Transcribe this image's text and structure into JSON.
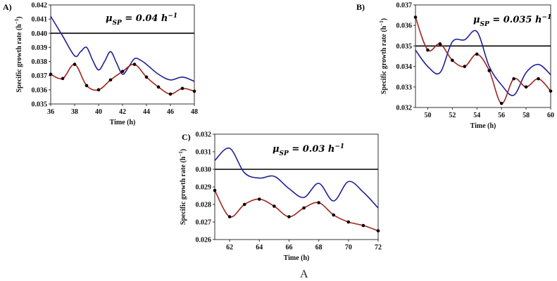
{
  "figure_caption": "A",
  "colors": {
    "model_line": "#1f1f9a",
    "measured_line": "#a3241c",
    "markers": "#000000",
    "setpoint_line": "#000000"
  },
  "chart_data": [
    {
      "panel": "A)",
      "type": "line",
      "annotation": "μSP = 0.04 h⁻¹",
      "xlabel": "Time (h)",
      "ylabel": "Specific growth rate (h⁻¹)",
      "xlim": [
        36,
        48
      ],
      "ylim": [
        0.035,
        0.042
      ],
      "xticks": [
        "36",
        "38",
        "40",
        "42",
        "44",
        "46",
        "48"
      ],
      "yticks": [
        "0.035",
        "0.036",
        "0.037",
        "0.038",
        "0.039",
        "0.040",
        "0.041",
        "0.042"
      ],
      "setpoint": 0.04,
      "series": [
        {
          "role": "model",
          "color": "#1f1f9a",
          "markers": false,
          "x": [
            36,
            37,
            38,
            38.5,
            39,
            39.5,
            40,
            40.5,
            41,
            41.5,
            42,
            42.5,
            43,
            43.5,
            44,
            45,
            46,
            47,
            48
          ],
          "y": [
            0.0412,
            0.0398,
            0.0384,
            0.0387,
            0.039,
            0.0381,
            0.0374,
            0.038,
            0.0387,
            0.0379,
            0.0371,
            0.0376,
            0.0382,
            0.0381,
            0.0378,
            0.0371,
            0.0367,
            0.0369,
            0.0366
          ]
        },
        {
          "role": "measured",
          "color": "#a3241c",
          "markers": true,
          "x": [
            36,
            37,
            38,
            39,
            40,
            41,
            42,
            43,
            44,
            45,
            46,
            47,
            48
          ],
          "y": [
            0.0371,
            0.0368,
            0.0378,
            0.0363,
            0.036,
            0.0367,
            0.0373,
            0.0378,
            0.0369,
            0.0362,
            0.0357,
            0.0361,
            0.0359
          ]
        }
      ]
    },
    {
      "panel": "B)",
      "type": "line",
      "annotation": "μSP = 0.035 h⁻¹",
      "xlabel": "Time (h)",
      "ylabel": "Specific growth rate (h⁻¹)",
      "xlim": [
        49,
        60
      ],
      "ylim": [
        0.032,
        0.037
      ],
      "xticks": [
        "50",
        "52",
        "54",
        "56",
        "58",
        "60"
      ],
      "yticks": [
        "0.032",
        "0.033",
        "0.034",
        "0.035",
        "0.036",
        "0.037"
      ],
      "setpoint": 0.035,
      "series": [
        {
          "role": "model",
          "color": "#1f1f9a",
          "markers": false,
          "x": [
            49,
            50,
            51,
            52,
            53,
            54,
            55,
            56,
            57,
            58,
            59,
            60
          ],
          "y": [
            0.0348,
            0.034,
            0.0337,
            0.0352,
            0.0353,
            0.0357,
            0.034,
            0.0331,
            0.0326,
            0.0337,
            0.0341,
            0.0336
          ]
        },
        {
          "role": "measured",
          "color": "#a3241c",
          "markers": true,
          "x": [
            49,
            50,
            51,
            52,
            53,
            54,
            55,
            56,
            57,
            58,
            59,
            60
          ],
          "y": [
            0.0364,
            0.0348,
            0.0351,
            0.0343,
            0.034,
            0.0346,
            0.0338,
            0.0322,
            0.0334,
            0.033,
            0.0334,
            0.0328
          ]
        }
      ]
    },
    {
      "panel": "C)",
      "type": "line",
      "annotation": "μSP = 0.03 h⁻¹",
      "xlabel": "Time (h)",
      "ylabel": "Specific growth rate (h⁻¹)",
      "xlim": [
        61,
        72
      ],
      "ylim": [
        0.026,
        0.032
      ],
      "xticks": [
        "62",
        "64",
        "66",
        "68",
        "70",
        "72"
      ],
      "yticks": [
        "0.026",
        "0.027",
        "0.028",
        "0.029",
        "0.030",
        "0.031",
        "0.032"
      ],
      "setpoint": 0.03,
      "series": [
        {
          "role": "model",
          "color": "#1f1f9a",
          "markers": false,
          "x": [
            61,
            62,
            63,
            64,
            65,
            66,
            67,
            68,
            69,
            70,
            71,
            72
          ],
          "y": [
            0.0305,
            0.0312,
            0.0298,
            0.0295,
            0.0296,
            0.0289,
            0.0284,
            0.0292,
            0.0282,
            0.0293,
            0.0287,
            0.0278
          ]
        },
        {
          "role": "measured",
          "color": "#a3241c",
          "markers": true,
          "x": [
            61,
            62,
            63,
            64,
            65,
            66,
            67,
            68,
            69,
            70,
            71,
            72
          ],
          "y": [
            0.0288,
            0.0273,
            0.028,
            0.0283,
            0.0279,
            0.0273,
            0.0278,
            0.0281,
            0.0274,
            0.027,
            0.0268,
            0.0265
          ]
        }
      ]
    }
  ]
}
